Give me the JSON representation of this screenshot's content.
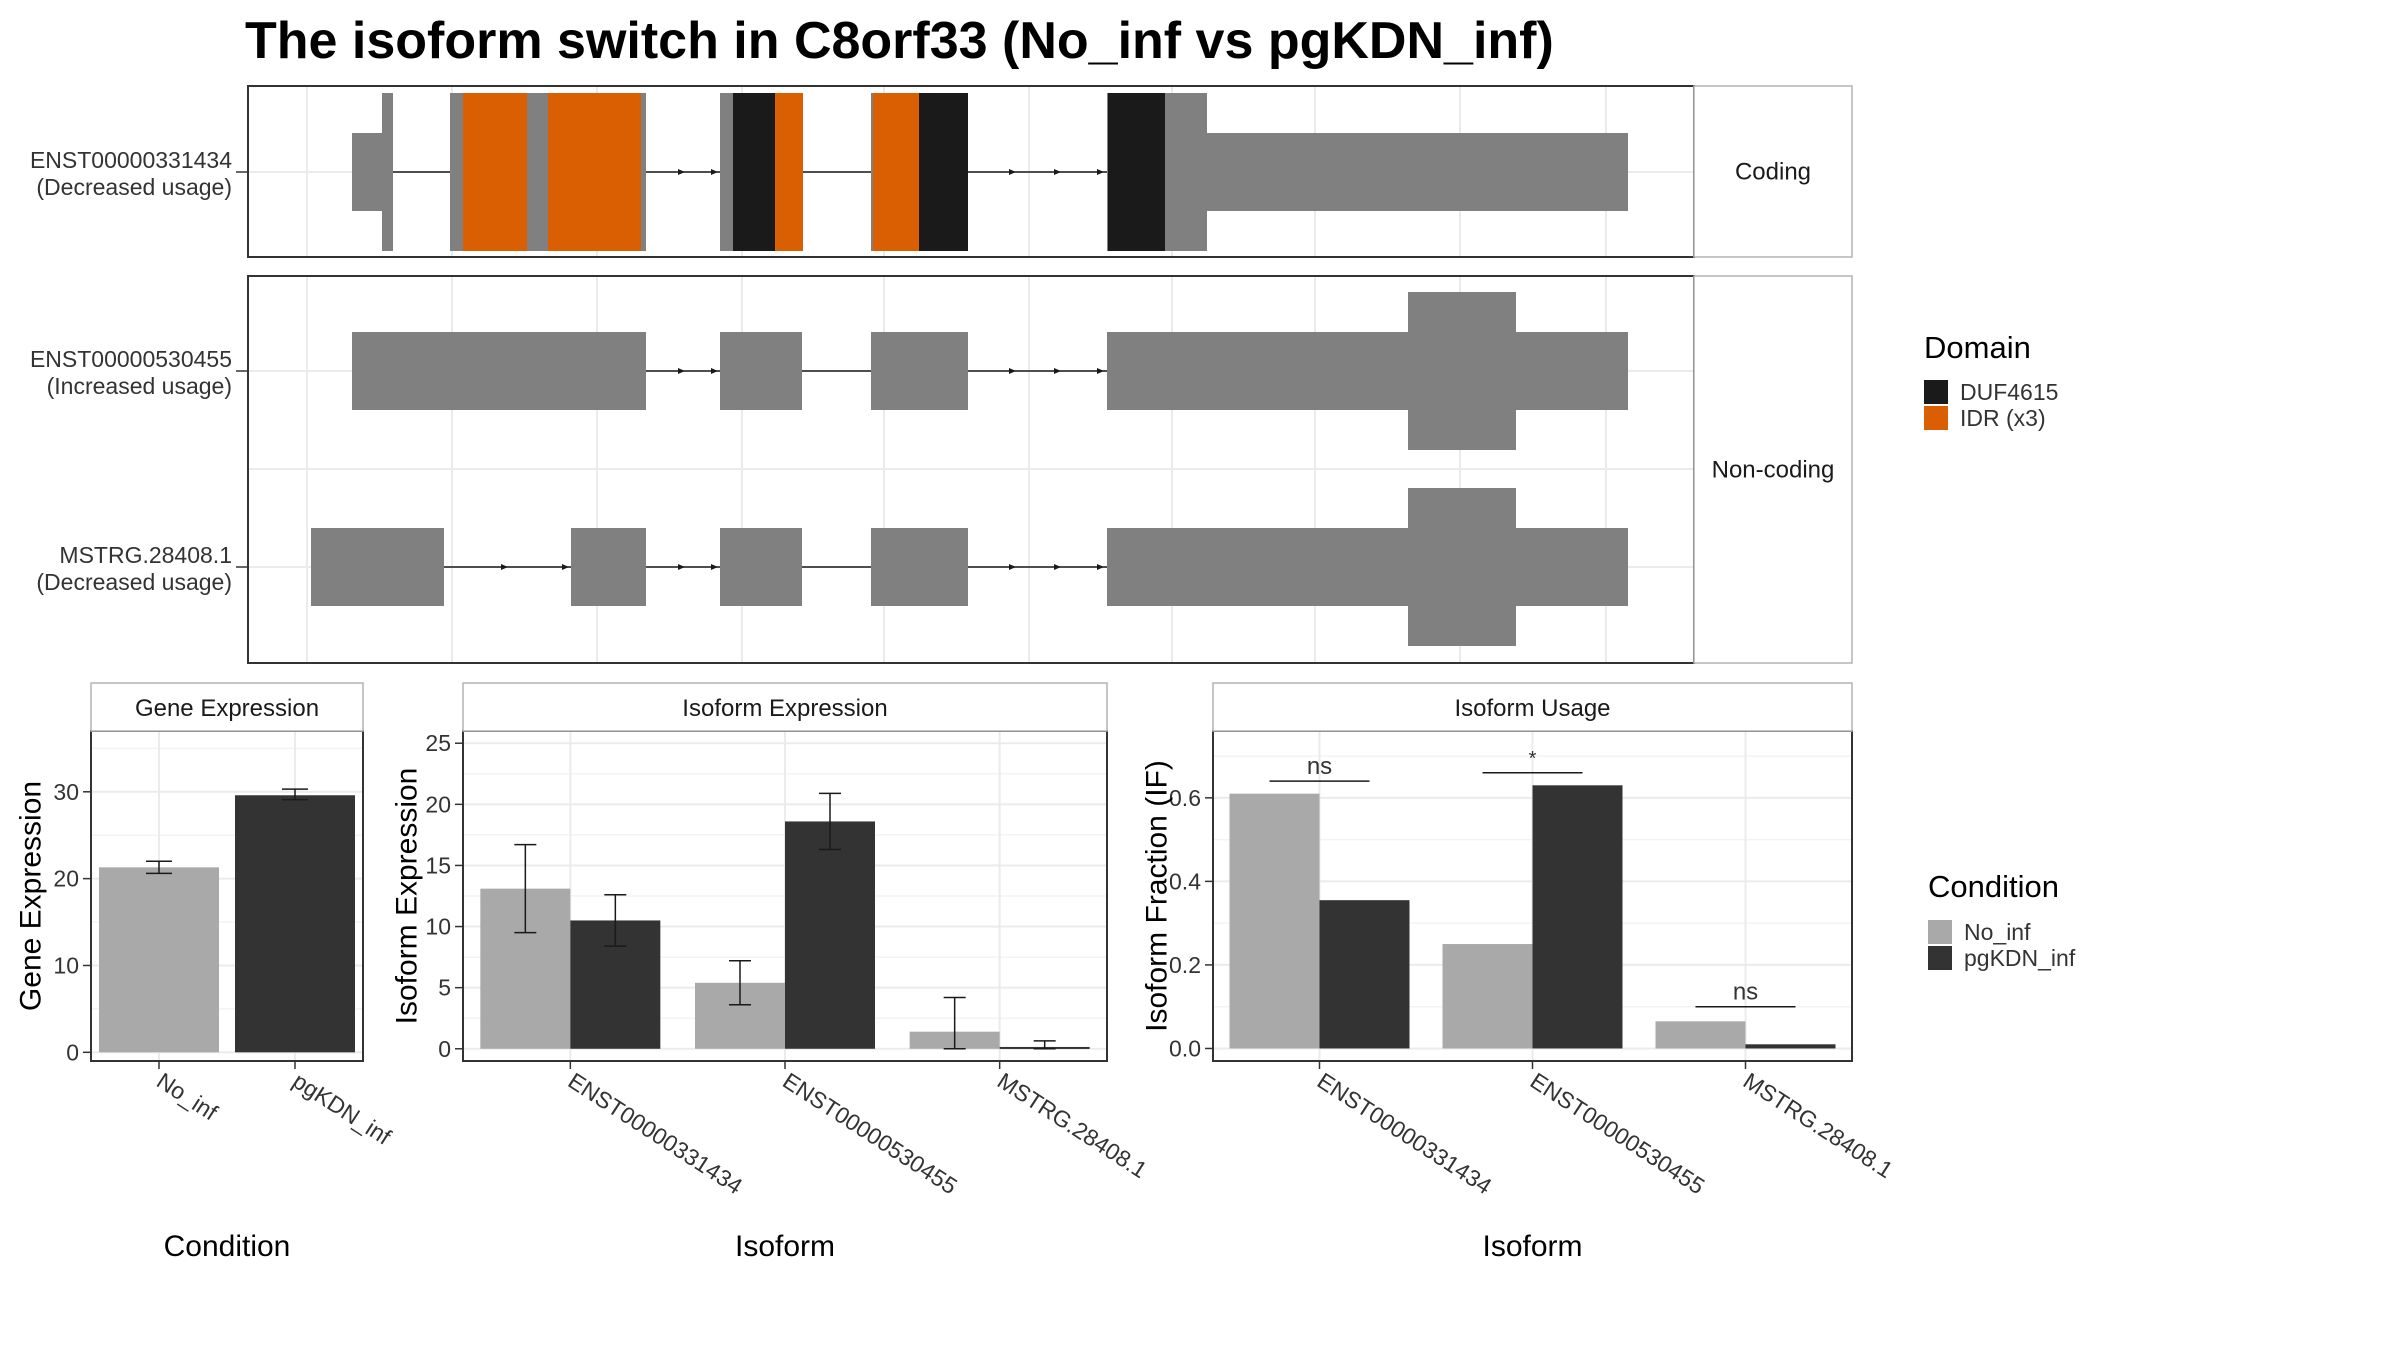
{
  "title": "The isoform switch in C8orf33 (No_inf vs pgKDN_inf)",
  "colors": {
    "exon": "#808080",
    "duf": "#1a1a1a",
    "idr": "#d95f02",
    "no_inf": "#a9a9a9",
    "pgkdn": "#333333",
    "grid": "#ebebeb",
    "panel_border": "#333333",
    "strip_border": "#b3b3b3"
  },
  "transcript_panel": {
    "groups": [
      {
        "name": "Coding",
        "rows": [
          {
            "id": "ENST00000331434",
            "usage": "(Decreased usage)"
          }
        ]
      },
      {
        "name": "Non-coding",
        "rows": [
          {
            "id": "ENST00000530455",
            "usage": "(Increased usage)"
          },
          {
            "id": "MSTRG.28408.1",
            "usage": "(Decreased usage)"
          }
        ]
      }
    ],
    "domain_legend": {
      "title": "Domain",
      "items": [
        {
          "label": "DUF4615",
          "color": "#1a1a1a"
        },
        {
          "label": "IDR (x3)",
          "color": "#d95f02"
        }
      ]
    }
  },
  "chart_data": [
    {
      "type": "bar",
      "strip": "Gene Expression",
      "xlabel": "Condition",
      "ylabel": "Gene Expression",
      "categories": [
        "No_inf",
        "pgKDN_inf"
      ],
      "values": [
        21.3,
        29.6
      ],
      "error_low": [
        20.6,
        29.1
      ],
      "error_high": [
        22.0,
        30.3
      ],
      "yticks": [
        0,
        10,
        20,
        30
      ],
      "ylim": [
        -1,
        37
      ]
    },
    {
      "type": "bar",
      "strip": "Isoform Expression",
      "xlabel": "Isoform",
      "ylabel": "Isoform Expression",
      "categories": [
        "ENST00000331434",
        "ENST00000530455",
        "MSTRG.28408.1"
      ],
      "series": [
        {
          "condition": "No_inf",
          "values": [
            13.1,
            5.4,
            1.4
          ],
          "error_low": [
            9.5,
            3.6,
            0.0
          ],
          "error_high": [
            16.7,
            7.2,
            4.2
          ]
        },
        {
          "condition": "pgKDN_inf",
          "values": [
            10.5,
            18.6,
            0.15
          ],
          "error_low": [
            8.4,
            16.3,
            0.0
          ],
          "error_high": [
            12.6,
            20.9,
            0.65
          ]
        }
      ],
      "yticks": [
        0,
        5,
        10,
        15,
        20,
        25
      ],
      "ylim": [
        -1,
        26
      ]
    },
    {
      "type": "bar",
      "strip": "Isoform Usage",
      "xlabel": "Isoform",
      "ylabel": "Isoform Fraction (IF)",
      "categories": [
        "ENST00000331434",
        "ENST00000530455",
        "MSTRG.28408.1"
      ],
      "series": [
        {
          "condition": "No_inf",
          "values": [
            0.61,
            0.25,
            0.065
          ]
        },
        {
          "condition": "pgKDN_inf",
          "values": [
            0.355,
            0.63,
            0.01
          ]
        }
      ],
      "significance": [
        "ns",
        "*",
        "ns"
      ],
      "sig_y": [
        0.64,
        0.66,
        0.1
      ],
      "yticks": [
        0.0,
        0.2,
        0.4,
        0.6
      ],
      "yticklabels": [
        "0.0",
        "0.2",
        "0.4",
        "0.6"
      ],
      "ylim": [
        -0.03,
        0.76
      ]
    }
  ],
  "condition_legend": {
    "title": "Condition",
    "items": [
      {
        "label": "No_inf",
        "color": "#a9a9a9"
      },
      {
        "label": "pgKDN_inf",
        "color": "#333333"
      }
    ]
  }
}
